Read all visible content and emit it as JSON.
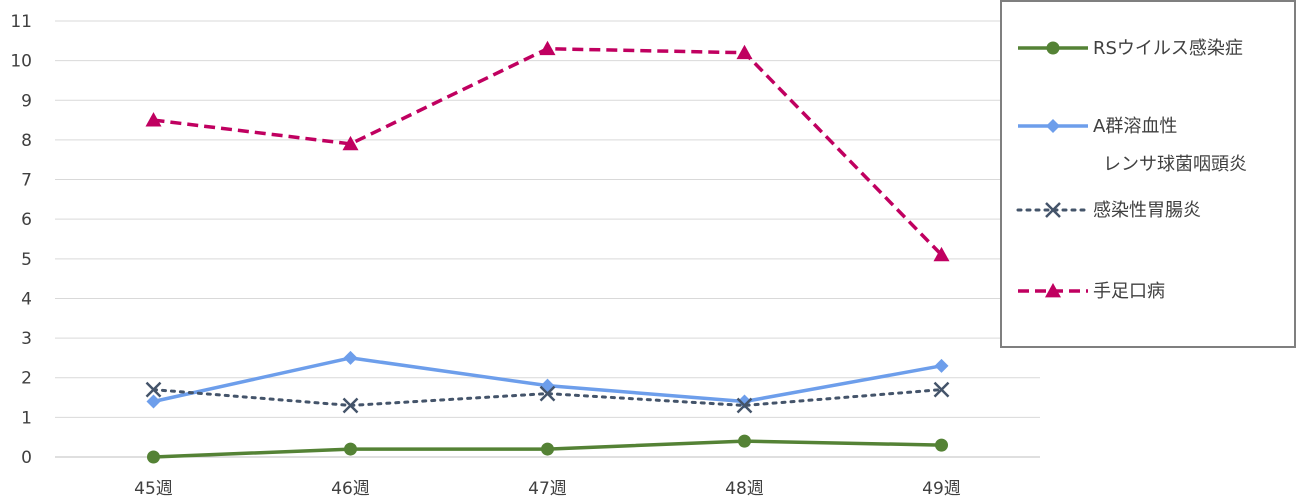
{
  "chart_data": {
    "type": "line",
    "categories": [
      "45週",
      "46週",
      "47週",
      "48週",
      "49週"
    ],
    "ylim": [
      0,
      11
    ],
    "yticks": [
      "0",
      "1",
      "2",
      "3",
      "4",
      "5",
      "6",
      "7",
      "8",
      "9",
      "10",
      "11"
    ],
    "grid": true,
    "legend_position": "right",
    "series": [
      {
        "name": "RSウイルス感染症",
        "values": [
          0.0,
          0.2,
          0.2,
          0.4,
          0.3
        ],
        "color": "#548235",
        "marker": "circle",
        "dash": "solid"
      },
      {
        "name": "A群溶血性",
        "name_line2": "レンサ球菌咽頭炎",
        "values": [
          1.4,
          2.5,
          1.8,
          1.4,
          2.3
        ],
        "color": "#6d9eeb",
        "marker": "diamond",
        "dash": "solid"
      },
      {
        "name": "感染性胃腸炎",
        "values": [
          1.7,
          1.3,
          1.6,
          1.3,
          1.7
        ],
        "color": "#44546a",
        "marker": "x",
        "dash": "dot"
      },
      {
        "name": "手足口病",
        "values": [
          8.5,
          7.9,
          10.3,
          10.2,
          5.1
        ],
        "color": "#c00060",
        "marker": "triangle",
        "dash": "dash"
      }
    ]
  }
}
